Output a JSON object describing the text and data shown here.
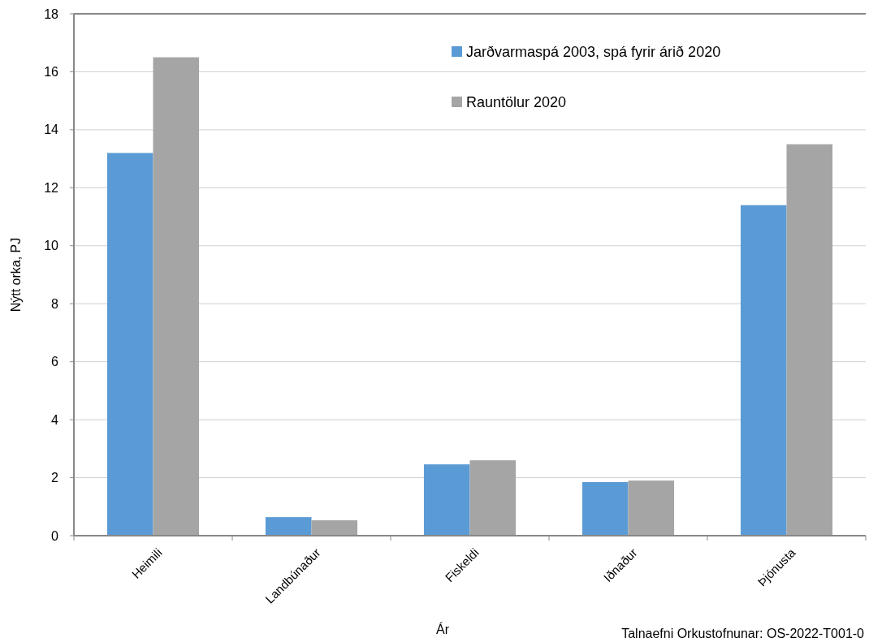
{
  "chart_data": {
    "type": "bar",
    "xlabel": "Ár",
    "ylabel": "Nýtt orka, PJ",
    "categories": [
      "Heimili",
      "Landbúnaður",
      "Fiskeldi",
      "Iðnaður",
      "Þjónusta"
    ],
    "series": [
      {
        "name": "Jarðvarmaspá 2003, spá fyrir árið 2020",
        "color": "#5b9bd5",
        "values": [
          13.2,
          0.64,
          2.46,
          1.85,
          11.4
        ]
      },
      {
        "name": "Rauntölur 2020",
        "color": "#a5a5a5",
        "values": [
          16.5,
          0.53,
          2.6,
          1.9,
          13.5
        ]
      }
    ],
    "ylim": [
      0,
      18
    ],
    "yticks": [
      0,
      2,
      4,
      6,
      8,
      10,
      12,
      14,
      16,
      18
    ],
    "grid": "y",
    "legend": "top right",
    "annotations": [
      "Talnaefni Orkustofnunar: OS-2022-T001-0"
    ]
  }
}
